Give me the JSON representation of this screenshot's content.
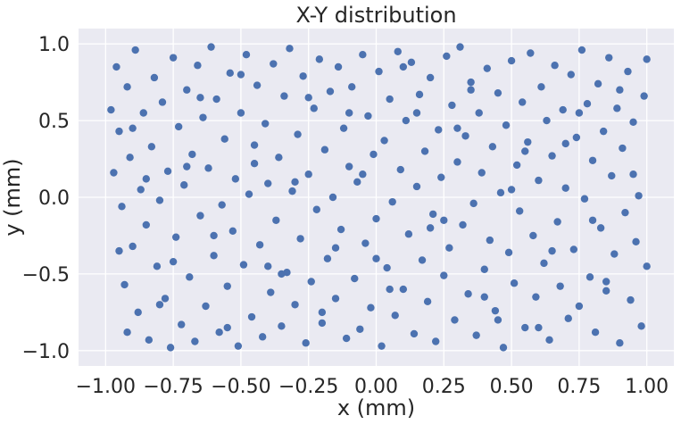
{
  "chart_data": {
    "type": "scatter",
    "title": "X-Y distribution",
    "xlabel": "x (mm)",
    "ylabel": "y (mm)",
    "xlim": [
      -1.1,
      1.1
    ],
    "ylim": [
      -1.1,
      1.1
    ],
    "xticks": [
      -1.0,
      -0.75,
      -0.5,
      -0.25,
      0.0,
      0.25,
      0.5,
      0.75,
      1.0
    ],
    "xtick_labels": [
      "−1.00",
      "−0.75",
      "−0.50",
      "−0.25",
      "0.00",
      "0.25",
      "0.50",
      "0.75",
      "1.00"
    ],
    "yticks": [
      -1.0,
      -0.5,
      0.0,
      0.5,
      1.0
    ],
    "ytick_labels": [
      "−1.0",
      "−0.5",
      "0.0",
      "0.5",
      "1.0"
    ],
    "grid": true,
    "background": "#eaeaf2",
    "point_color": "#4c72b0",
    "series": [
      {
        "points": [
          [
            -0.98,
            0.57
          ],
          [
            -0.97,
            0.16
          ],
          [
            -0.96,
            0.85
          ],
          [
            -0.95,
            0.43
          ],
          [
            -0.94,
            -0.06
          ],
          [
            -0.93,
            -0.57
          ],
          [
            -0.92,
            -0.88
          ],
          [
            -0.92,
            0.72
          ],
          [
            -0.91,
            0.26
          ],
          [
            -0.9,
            -0.32
          ],
          [
            -0.89,
            0.96
          ],
          [
            -0.88,
            -0.75
          ],
          [
            -0.87,
            0.05
          ],
          [
            -0.86,
            0.55
          ],
          [
            -0.85,
            -0.18
          ],
          [
            -0.84,
            -0.93
          ],
          [
            -0.83,
            0.33
          ],
          [
            -0.82,
            0.78
          ],
          [
            -0.81,
            -0.45
          ],
          [
            -0.8,
            -0.02
          ],
          [
            -0.79,
            0.62
          ],
          [
            -0.78,
            -0.66
          ],
          [
            -0.77,
            0.17
          ],
          [
            -0.76,
            -0.98
          ],
          [
            -0.75,
            0.91
          ],
          [
            -0.74,
            -0.26
          ],
          [
            -0.73,
            0.46
          ],
          [
            -0.72,
            -0.83
          ],
          [
            -0.71,
            0.08
          ],
          [
            -0.7,
            0.7
          ],
          [
            -0.69,
            -0.52
          ],
          [
            -0.68,
            0.28
          ],
          [
            -0.67,
            -0.94
          ],
          [
            -0.66,
            0.86
          ],
          [
            -0.65,
            -0.12
          ],
          [
            -0.64,
            0.52
          ],
          [
            -0.63,
            -0.71
          ],
          [
            -0.62,
            0.19
          ],
          [
            -0.61,
            0.98
          ],
          [
            -0.6,
            -0.38
          ],
          [
            -0.59,
            0.64
          ],
          [
            -0.58,
            -0.88
          ],
          [
            -0.57,
            -0.05
          ],
          [
            -0.56,
            0.38
          ],
          [
            -0.55,
            -0.58
          ],
          [
            -0.54,
            0.81
          ],
          [
            -0.53,
            -0.22
          ],
          [
            -0.52,
            0.12
          ],
          [
            -0.51,
            -0.97
          ],
          [
            -0.5,
            0.55
          ],
          [
            -0.49,
            -0.44
          ],
          [
            -0.48,
            0.93
          ],
          [
            -0.47,
            0.02
          ],
          [
            -0.46,
            -0.78
          ],
          [
            -0.45,
            0.34
          ],
          [
            -0.44,
            0.73
          ],
          [
            -0.43,
            -0.31
          ],
          [
            -0.42,
            -0.91
          ],
          [
            -0.41,
            0.48
          ],
          [
            -0.4,
            0.09
          ],
          [
            -0.39,
            -0.62
          ],
          [
            -0.38,
            0.87
          ],
          [
            -0.37,
            -0.15
          ],
          [
            -0.36,
            0.26
          ],
          [
            -0.35,
            -0.84
          ],
          [
            -0.34,
            0.66
          ],
          [
            -0.33,
            -0.49
          ],
          [
            -0.32,
            0.97
          ],
          [
            -0.31,
            0.04
          ],
          [
            -0.3,
            -0.7
          ],
          [
            -0.29,
            0.41
          ],
          [
            -0.28,
            -0.27
          ],
          [
            -0.27,
            0.79
          ],
          [
            -0.26,
            -0.95
          ],
          [
            -0.25,
            0.15
          ],
          [
            -0.24,
            -0.55
          ],
          [
            -0.23,
            0.58
          ],
          [
            -0.22,
            -0.08
          ],
          [
            -0.21,
            0.9
          ],
          [
            -0.2,
            -0.82
          ],
          [
            -0.19,
            0.31
          ],
          [
            -0.18,
            -0.4
          ],
          [
            -0.17,
            0.69
          ],
          [
            -0.16,
            0.0
          ],
          [
            -0.15,
            -0.66
          ],
          [
            -0.14,
            0.85
          ],
          [
            -0.13,
            -0.21
          ],
          [
            -0.12,
            0.45
          ],
          [
            -0.11,
            -0.92
          ],
          [
            -0.1,
            0.2
          ],
          [
            -0.09,
            0.72
          ],
          [
            -0.08,
            -0.53
          ],
          [
            -0.07,
            0.1
          ],
          [
            -0.06,
            -0.86
          ],
          [
            -0.05,
            0.93
          ],
          [
            -0.04,
            -0.3
          ],
          [
            -0.03,
            0.53
          ],
          [
            -0.02,
            -0.72
          ],
          [
            -0.01,
            0.28
          ],
          [
            0.0,
            -0.14
          ],
          [
            0.01,
            0.82
          ],
          [
            0.02,
            -0.97
          ],
          [
            0.03,
            0.37
          ],
          [
            0.04,
            -0.46
          ],
          [
            0.05,
            0.64
          ],
          [
            0.06,
            -0.03
          ],
          [
            0.07,
            -0.77
          ],
          [
            0.08,
            0.95
          ],
          [
            0.09,
            0.18
          ],
          [
            0.1,
            -0.6
          ],
          [
            0.11,
            0.5
          ],
          [
            0.12,
            -0.24
          ],
          [
            0.13,
            0.88
          ],
          [
            0.14,
            -0.89
          ],
          [
            0.15,
            0.07
          ],
          [
            0.16,
            0.67
          ],
          [
            0.17,
            -0.41
          ],
          [
            0.18,
            0.3
          ],
          [
            0.19,
            -0.68
          ],
          [
            0.2,
            0.78
          ],
          [
            0.21,
            -0.11
          ],
          [
            0.22,
            -0.94
          ],
          [
            0.23,
            0.44
          ],
          [
            0.24,
            0.13
          ],
          [
            0.25,
            -0.51
          ],
          [
            0.26,
            0.92
          ],
          [
            0.27,
            -0.33
          ],
          [
            0.28,
            0.6
          ],
          [
            0.29,
            -0.8
          ],
          [
            0.3,
            0.23
          ],
          [
            0.31,
            0.98
          ],
          [
            0.32,
            -0.18
          ],
          [
            0.33,
            0.4
          ],
          [
            0.34,
            -0.63
          ],
          [
            0.35,
            0.75
          ],
          [
            0.36,
            -0.04
          ],
          [
            0.37,
            -0.9
          ],
          [
            0.38,
            0.55
          ],
          [
            0.39,
            0.16
          ],
          [
            0.4,
            -0.47
          ],
          [
            0.41,
            0.84
          ],
          [
            0.42,
            -0.28
          ],
          [
            0.43,
            0.33
          ],
          [
            0.44,
            -0.74
          ],
          [
            0.45,
            0.68
          ],
          [
            0.46,
            0.03
          ],
          [
            0.47,
            -0.98
          ],
          [
            0.48,
            0.47
          ],
          [
            0.49,
            -0.36
          ],
          [
            0.5,
            0.89
          ],
          [
            0.51,
            -0.56
          ],
          [
            0.52,
            0.21
          ],
          [
            0.53,
            -0.09
          ],
          [
            0.54,
            0.62
          ],
          [
            0.55,
            -0.85
          ],
          [
            0.56,
            0.36
          ],
          [
            0.57,
            0.94
          ],
          [
            0.58,
            -0.25
          ],
          [
            0.59,
            -0.65
          ],
          [
            0.6,
            0.11
          ],
          [
            0.61,
            0.72
          ],
          [
            0.62,
            -0.43
          ],
          [
            0.63,
            0.5
          ],
          [
            0.64,
            -0.93
          ],
          [
            0.65,
            0.27
          ],
          [
            0.66,
            0.86
          ],
          [
            0.67,
            -0.16
          ],
          [
            0.68,
            -0.58
          ],
          [
            0.69,
            0.57
          ],
          [
            0.7,
            0.06
          ],
          [
            0.71,
            -0.79
          ],
          [
            0.72,
            0.8
          ],
          [
            0.73,
            -0.34
          ],
          [
            0.74,
            0.39
          ],
          [
            0.75,
            -0.71
          ],
          [
            0.76,
            0.96
          ],
          [
            0.77,
            -0.01
          ],
          [
            0.78,
            0.61
          ],
          [
            0.79,
            -0.52
          ],
          [
            0.8,
            0.24
          ],
          [
            0.81,
            -0.88
          ],
          [
            0.82,
            0.74
          ],
          [
            0.83,
            -0.2
          ],
          [
            0.84,
            0.43
          ],
          [
            0.85,
            -0.61
          ],
          [
            0.86,
            0.91
          ],
          [
            0.87,
            0.14
          ],
          [
            0.88,
            -0.37
          ],
          [
            0.89,
            0.58
          ],
          [
            0.9,
            -0.95
          ],
          [
            0.91,
            0.32
          ],
          [
            0.92,
            -0.1
          ],
          [
            0.93,
            0.82
          ],
          [
            0.94,
            -0.67
          ],
          [
            0.95,
            0.49
          ],
          [
            0.96,
            -0.29
          ],
          [
            0.97,
            0.01
          ],
          [
            0.98,
            -0.84
          ],
          [
            0.99,
            0.66
          ],
          [
            1.0,
            0.9
          ],
          [
            -0.95,
            -0.35
          ],
          [
            -0.85,
            0.12
          ],
          [
            -0.75,
            -0.42
          ],
          [
            -0.65,
            0.65
          ],
          [
            -0.55,
            -0.85
          ],
          [
            -0.45,
            0.22
          ],
          [
            -0.35,
            -0.5
          ],
          [
            -0.25,
            0.65
          ],
          [
            -0.15,
            -0.33
          ],
          [
            -0.05,
            0.15
          ],
          [
            0.05,
            -0.6
          ],
          [
            0.15,
            0.55
          ],
          [
            0.25,
            -0.15
          ],
          [
            0.35,
            0.7
          ],
          [
            0.45,
            -0.8
          ],
          [
            0.55,
            0.3
          ],
          [
            0.65,
            -0.35
          ],
          [
            0.75,
            0.55
          ],
          [
            0.85,
            -0.55
          ],
          [
            0.95,
            0.15
          ],
          [
            -0.9,
            0.45
          ],
          [
            -0.8,
            -0.7
          ],
          [
            -0.7,
            0.2
          ],
          [
            -0.6,
            -0.25
          ],
          [
            -0.5,
            0.8
          ],
          [
            -0.4,
            -0.45
          ],
          [
            -0.3,
            0.1
          ],
          [
            -0.2,
            -0.75
          ],
          [
            -0.1,
            0.55
          ],
          [
            0.0,
            -0.4
          ],
          [
            0.1,
            0.85
          ],
          [
            0.2,
            -0.2
          ],
          [
            0.3,
            0.45
          ],
          [
            0.4,
            -0.65
          ],
          [
            0.5,
            0.05
          ],
          [
            0.6,
            -0.85
          ],
          [
            0.7,
            0.35
          ],
          [
            0.8,
            -0.15
          ],
          [
            0.9,
            0.7
          ],
          [
            1.0,
            -0.45
          ]
        ]
      }
    ]
  }
}
